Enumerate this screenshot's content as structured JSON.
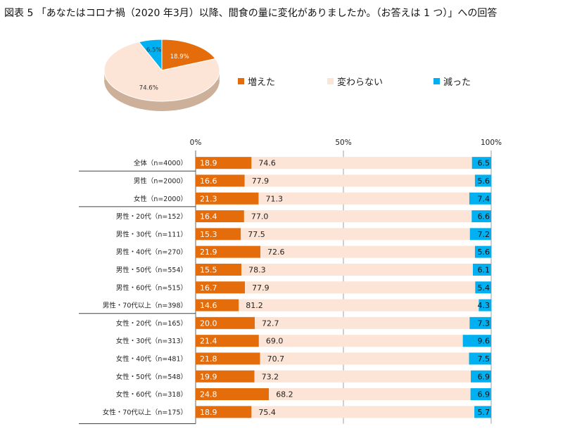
{
  "title": "図表 5 「あなたはコロナ禍（2020 年3月）以降、間食の量に変化がありましたか。（お答えは 1 つ）」への回答",
  "colors": {
    "increase": "#e46c0a",
    "same": "#fce4d6",
    "decrease": "#00b0f0"
  },
  "chart_data": [
    {
      "type": "pie",
      "legend": [
        "増えた",
        "変わらない",
        "減った"
      ],
      "values": [
        18.9,
        74.6,
        6.5
      ],
      "labels": [
        "18.9%",
        "74.6%",
        "6.5%"
      ]
    },
    {
      "type": "bar",
      "stacked": true,
      "orientation": "horizontal",
      "xticks": [
        "0%",
        "50%",
        "100%"
      ],
      "xlim": [
        0,
        100
      ],
      "categories": [
        "全体（n=4000）",
        "男性（n=2000）",
        "女性（n=2000）",
        "男性・20代（n=152）",
        "男性・30代（n=111）",
        "男性・40代（n=270）",
        "男性・50代（n=554）",
        "男性・60代（n=515）",
        "男性・70代以上（n=398）",
        "女性・20代（n=165）",
        "女性・30代（n=313）",
        "女性・40代（n=481）",
        "女性・50代（n=548）",
        "女性・60代（n=318）",
        "女性・70代以上（n=175）"
      ],
      "series": [
        {
          "name": "増えた",
          "values": [
            18.9,
            16.6,
            21.3,
            16.4,
            15.3,
            21.9,
            15.5,
            16.7,
            14.6,
            20.0,
            21.4,
            21.8,
            19.9,
            24.8,
            18.9
          ],
          "labels": [
            "18.9",
            "16.6",
            "21.3",
            "16.4",
            "15.3",
            "21.9",
            "15.5",
            "16.7",
            "14.6",
            "20.0",
            "21.4",
            "21.8",
            "19.9",
            "24.8",
            "18.9"
          ]
        },
        {
          "name": "変わらない",
          "values": [
            74.6,
            77.9,
            71.3,
            77.0,
            77.5,
            72.6,
            78.3,
            77.9,
            81.2,
            72.7,
            69.0,
            70.7,
            73.2,
            68.2,
            75.4
          ],
          "labels": [
            "74.6",
            "77.9",
            "71.3",
            "77.0",
            "77.5",
            "72.6",
            "78.3",
            "77.9",
            "81.2",
            "72.7",
            "69.0",
            "70.7",
            "73.2",
            "68.2",
            "75.4"
          ]
        },
        {
          "name": "減った",
          "values": [
            6.5,
            5.6,
            7.4,
            6.6,
            7.2,
            5.6,
            6.1,
            5.4,
            4.3,
            7.3,
            9.6,
            7.5,
            6.9,
            6.9,
            5.7
          ],
          "labels": [
            "6.5",
            "5.6",
            "7.4",
            "6.6",
            "7.2",
            "5.6",
            "6.1",
            "5.4",
            "4.3",
            "7.3",
            "9.6",
            "7.5",
            "6.9",
            "6.9",
            "5.7"
          ]
        }
      ]
    }
  ]
}
